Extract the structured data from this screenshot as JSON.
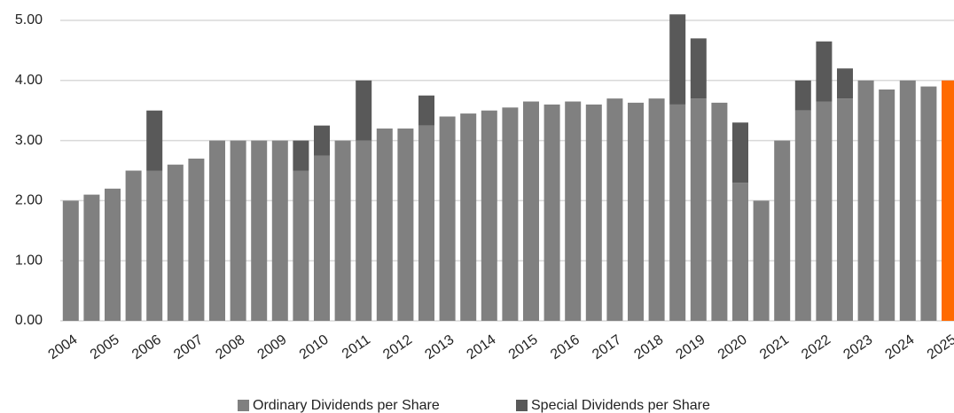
{
  "chart_data": {
    "type": "stacked_bar",
    "categories": [
      "2004",
      null,
      "2005",
      null,
      "2006",
      null,
      "2007",
      null,
      "2008",
      null,
      "2009",
      null,
      "2010",
      null,
      "2011",
      null,
      "2012",
      null,
      "2013",
      null,
      "2014",
      null,
      "2015",
      null,
      "2016",
      null,
      "2017",
      null,
      "2018",
      null,
      "2019",
      null,
      "2020",
      null,
      "2021",
      null,
      "2022",
      null,
      "2023",
      null,
      "2024",
      null,
      "2025"
    ],
    "series": [
      {
        "name": "Ordinary Dividends per Share",
        "color": "#808080",
        "values": [
          2.0,
          2.1,
          2.2,
          2.5,
          2.5,
          2.6,
          2.7,
          3.0,
          3.0,
          3.0,
          3.0,
          2.5,
          2.75,
          3.0,
          3.0,
          3.2,
          3.2,
          3.25,
          3.4,
          3.45,
          3.5,
          3.55,
          3.65,
          3.6,
          3.65,
          3.6,
          3.7,
          3.63,
          3.7,
          3.6,
          3.7,
          3.63,
          2.3,
          2.0,
          3.0,
          3.5,
          3.65,
          3.7,
          4.0,
          3.85,
          4.0,
          3.9,
          4.0
        ],
        "colors": [
          "#808080",
          "#808080",
          "#808080",
          "#808080",
          "#808080",
          "#808080",
          "#808080",
          "#808080",
          "#808080",
          "#808080",
          "#808080",
          "#808080",
          "#808080",
          "#808080",
          "#808080",
          "#808080",
          "#808080",
          "#808080",
          "#808080",
          "#808080",
          "#808080",
          "#808080",
          "#808080",
          "#808080",
          "#808080",
          "#808080",
          "#808080",
          "#808080",
          "#808080",
          "#808080",
          "#808080",
          "#808080",
          "#808080",
          "#808080",
          "#808080",
          "#808080",
          "#808080",
          "#808080",
          "#808080",
          "#808080",
          "#808080",
          "#808080",
          "#ff6a00"
        ]
      },
      {
        "name": "Special Dividends per Share",
        "color": "#595959",
        "values": [
          0,
          0,
          0,
          0,
          1.0,
          0,
          0,
          0,
          0,
          0,
          0,
          0.5,
          0.5,
          0,
          1.0,
          0,
          0,
          0.5,
          0,
          0,
          0,
          0,
          0,
          0,
          0,
          0,
          0,
          0,
          0,
          1.5,
          1.0,
          0,
          1.0,
          0,
          0,
          0.5,
          1.0,
          0.5,
          0,
          0,
          0,
          0,
          0
        ]
      }
    ],
    "ylim": [
      0,
      5
    ],
    "yticks": [
      {
        "value": 0,
        "label": "0.00"
      },
      {
        "value": 1,
        "label": "1.00"
      },
      {
        "value": 2,
        "label": "2.00"
      },
      {
        "value": 3,
        "label": "3.00"
      },
      {
        "value": 4,
        "label": "4.00"
      },
      {
        "value": 5,
        "label": "5.00"
      }
    ],
    "grid": true,
    "legend": "bottom"
  }
}
